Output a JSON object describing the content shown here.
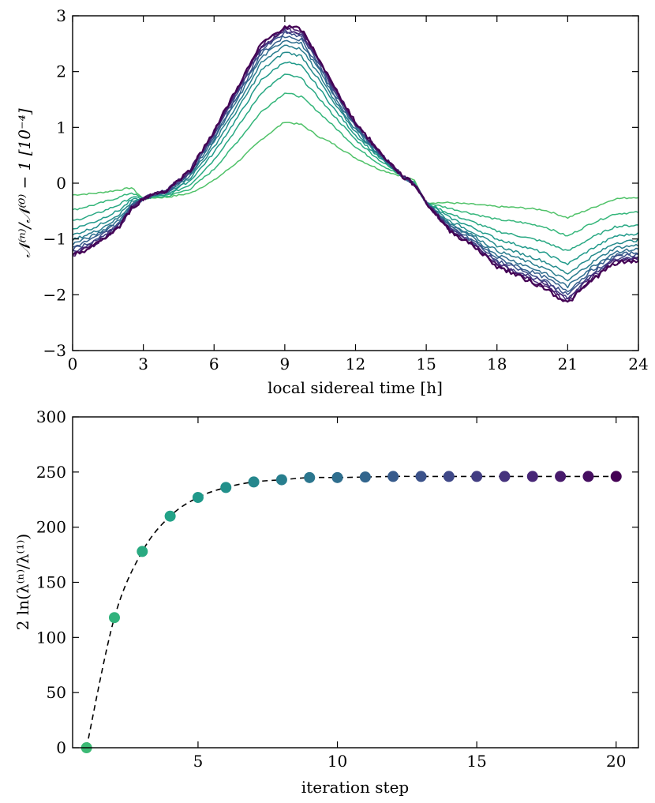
{
  "chart_data": [
    {
      "type": "line",
      "xlabel": "local sidereal time [h]",
      "ylabel": "𝒩⁽ⁿ⁾/𝒩⁽⁰⁾ − 1   [10⁻⁴]",
      "xlim": [
        0,
        24
      ],
      "ylim": [
        -3,
        3
      ],
      "xticks": [
        0,
        3,
        6,
        9,
        12,
        15,
        18,
        21,
        24
      ],
      "yticks": [
        -3,
        -2,
        -1,
        0,
        1,
        2,
        3
      ],
      "xtick_labels": [
        "0",
        "3",
        "6",
        "9",
        "12",
        "15",
        "18",
        "21",
        "24"
      ],
      "ytick_labels": [
        "−3",
        "−2",
        "−1",
        "0",
        "1",
        "2",
        "3"
      ],
      "grid": false,
      "colormap": "viridis",
      "x": [
        0,
        1,
        2,
        2.5,
        3,
        3.5,
        4,
        5,
        6,
        7,
        8,
        9,
        9.7,
        10.5,
        11,
        12,
        13,
        14,
        14.5,
        15,
        16,
        17,
        18,
        19,
        20,
        21,
        22,
        23,
        24
      ],
      "series": [
        {
          "values": [
            -0.21,
            -0.18,
            -0.12,
            -0.08,
            -0.28,
            -0.26,
            -0.25,
            -0.18,
            0.05,
            0.38,
            0.78,
            1.1,
            1.05,
            0.82,
            0.72,
            0.45,
            0.25,
            0.12,
            0.05,
            -0.35,
            -0.35,
            -0.38,
            -0.42,
            -0.44,
            -0.48,
            -0.62,
            -0.45,
            -0.28,
            -0.25
          ]
        },
        {
          "values": [
            -0.48,
            -0.38,
            -0.25,
            -0.17,
            -0.28,
            -0.25,
            -0.24,
            -0.1,
            0.25,
            0.75,
            1.28,
            1.62,
            1.55,
            1.25,
            1.05,
            0.65,
            0.35,
            0.12,
            0.02,
            -0.35,
            -0.45,
            -0.55,
            -0.65,
            -0.7,
            -0.78,
            -0.95,
            -0.72,
            -0.55,
            -0.52
          ]
        },
        {
          "values": [
            -0.68,
            -0.55,
            -0.38,
            -0.25,
            -0.28,
            -0.24,
            -0.22,
            -0.02,
            0.42,
            1.0,
            1.62,
            1.95,
            1.88,
            1.5,
            1.25,
            0.78,
            0.42,
            0.12,
            0.0,
            -0.35,
            -0.55,
            -0.7,
            -0.86,
            -0.95,
            -1.05,
            -1.22,
            -0.98,
            -0.78,
            -0.75
          ]
        },
        {
          "values": [
            -0.82,
            -0.68,
            -0.48,
            -0.3,
            -0.28,
            -0.23,
            -0.2,
            0.05,
            0.55,
            1.18,
            1.85,
            2.18,
            2.1,
            1.68,
            1.38,
            0.86,
            0.46,
            0.12,
            -0.01,
            -0.35,
            -0.62,
            -0.8,
            -1.0,
            -1.12,
            -1.25,
            -1.45,
            -1.18,
            -0.95,
            -0.9
          ]
        },
        {
          "values": [
            -0.93,
            -0.78,
            -0.55,
            -0.34,
            -0.28,
            -0.22,
            -0.18,
            0.1,
            0.65,
            1.32,
            2.02,
            2.35,
            2.28,
            1.82,
            1.48,
            0.92,
            0.49,
            0.12,
            -0.01,
            -0.35,
            -0.68,
            -0.88,
            -1.12,
            -1.26,
            -1.4,
            -1.62,
            -1.32,
            -1.07,
            -1.02
          ]
        },
        {
          "values": [
            -1.02,
            -0.86,
            -0.61,
            -0.37,
            -0.28,
            -0.21,
            -0.17,
            0.14,
            0.73,
            1.42,
            2.15,
            2.48,
            2.4,
            1.92,
            1.56,
            0.96,
            0.51,
            0.12,
            -0.02,
            -0.35,
            -0.72,
            -0.94,
            -1.21,
            -1.36,
            -1.52,
            -1.75,
            -1.43,
            -1.16,
            -1.11
          ]
        },
        {
          "values": [
            -1.09,
            -0.92,
            -0.65,
            -0.39,
            -0.28,
            -0.2,
            -0.16,
            0.17,
            0.79,
            1.5,
            2.25,
            2.57,
            2.5,
            2.0,
            1.62,
            1.0,
            0.53,
            0.12,
            -0.02,
            -0.35,
            -0.75,
            -0.99,
            -1.28,
            -1.44,
            -1.61,
            -1.85,
            -1.51,
            -1.23,
            -1.18
          ]
        },
        {
          "values": [
            -1.15,
            -0.97,
            -0.69,
            -0.41,
            -0.28,
            -0.2,
            -0.15,
            0.19,
            0.83,
            1.56,
            2.32,
            2.64,
            2.57,
            2.06,
            1.67,
            1.02,
            0.54,
            0.12,
            -0.02,
            -0.35,
            -0.78,
            -1.03,
            -1.34,
            -1.51,
            -1.68,
            -1.93,
            -1.57,
            -1.29,
            -1.24
          ]
        },
        {
          "values": [
            -1.19,
            -1.01,
            -0.72,
            -0.42,
            -0.28,
            -0.19,
            -0.14,
            0.21,
            0.87,
            1.61,
            2.38,
            2.69,
            2.63,
            2.11,
            1.71,
            1.04,
            0.55,
            0.12,
            -0.02,
            -0.35,
            -0.8,
            -1.06,
            -1.39,
            -1.56,
            -1.74,
            -2.0,
            -1.62,
            -1.33,
            -1.28
          ]
        },
        {
          "values": [
            -1.23,
            -1.04,
            -0.74,
            -0.43,
            -0.28,
            -0.19,
            -0.14,
            0.22,
            0.89,
            1.65,
            2.42,
            2.73,
            2.67,
            2.14,
            1.74,
            1.06,
            0.56,
            0.12,
            -0.02,
            -0.35,
            -0.82,
            -1.08,
            -1.42,
            -1.6,
            -1.78,
            -2.05,
            -1.66,
            -1.37,
            -1.32
          ]
        },
        {
          "values": [
            -1.26,
            -1.06,
            -0.76,
            -0.44,
            -0.28,
            -0.19,
            -0.13,
            0.23,
            0.91,
            1.68,
            2.45,
            2.76,
            2.7,
            2.17,
            1.76,
            1.07,
            0.56,
            0.12,
            -0.02,
            -0.35,
            -0.83,
            -1.1,
            -1.45,
            -1.63,
            -1.82,
            -2.09,
            -1.69,
            -1.4,
            -1.35
          ]
        },
        {
          "values": [
            -1.29,
            -1.08,
            -0.77,
            -0.45,
            -0.28,
            -0.18,
            -0.13,
            0.24,
            0.93,
            1.7,
            2.47,
            2.79,
            2.73,
            2.19,
            1.78,
            1.08,
            0.57,
            0.12,
            -0.02,
            -0.35,
            -0.84,
            -1.11,
            -1.47,
            -1.66,
            -1.85,
            -2.12,
            -1.72,
            -1.42,
            -1.37
          ]
        },
        {
          "values": [
            -1.31,
            -1.1,
            -0.78,
            -0.45,
            -0.28,
            -0.18,
            -0.13,
            0.24,
            0.94,
            1.72,
            2.49,
            2.81,
            2.75,
            2.2,
            1.79,
            1.09,
            0.57,
            0.12,
            -0.02,
            -0.35,
            -0.85,
            -1.12,
            -1.49,
            -1.68,
            -1.87,
            -2.15,
            -1.74,
            -1.44,
            -1.39
          ]
        }
      ]
    },
    {
      "type": "scatter",
      "xlabel": "iteration step",
      "ylabel": "2 ln(λ⁽ⁿ⁾/λ⁽¹⁾)",
      "xlim": [
        0.5,
        20.8
      ],
      "ylim": [
        0,
        300
      ],
      "xticks": [
        5,
        10,
        15,
        20
      ],
      "yticks": [
        0,
        50,
        100,
        150,
        200,
        250,
        300
      ],
      "xtick_labels": [
        "5",
        "10",
        "15",
        "20"
      ],
      "ytick_labels": [
        "0",
        "50",
        "100",
        "150",
        "200",
        "250",
        "300"
      ],
      "grid": false,
      "colormap": "viridis",
      "connecting_line": "dashed",
      "x": [
        1,
        2,
        3,
        4,
        5,
        6,
        7,
        8,
        9,
        10,
        11,
        12,
        13,
        14,
        15,
        16,
        17,
        18,
        19,
        20
      ],
      "values": [
        0,
        118,
        178,
        210,
        227,
        236,
        241,
        243,
        245,
        245,
        245.5,
        246,
        246,
        246,
        246,
        246,
        246,
        246,
        246,
        246
      ]
    }
  ]
}
